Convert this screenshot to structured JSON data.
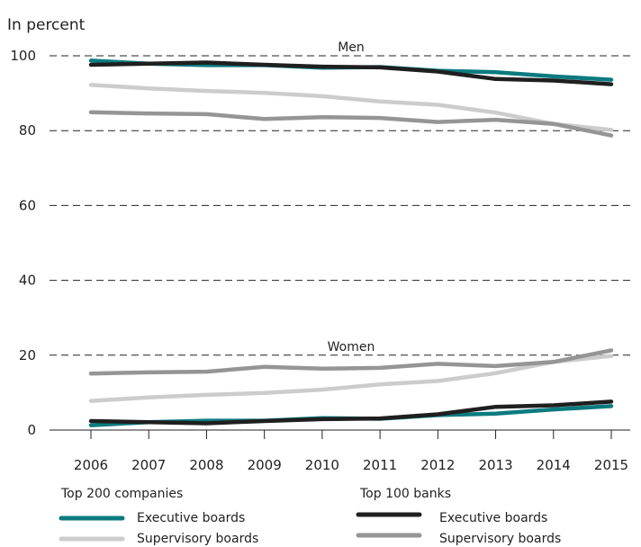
{
  "chart_data": {
    "type": "line",
    "unit_label": "In percent",
    "x": [
      2006,
      2007,
      2008,
      2009,
      2010,
      2011,
      2012,
      2013,
      2014,
      2015
    ],
    "ylim": [
      0,
      100
    ],
    "yticks": [
      0,
      20,
      40,
      60,
      80,
      100
    ],
    "grid": "horizontal dashed",
    "annotations": [
      {
        "text": "Men",
        "x": 2010.5,
        "y": 100
      },
      {
        "text": "Women",
        "x": 2010.5,
        "y": 20
      }
    ],
    "legend": {
      "placement": "bottom",
      "groups": [
        {
          "title": "Top 200 companies",
          "entries": [
            {
              "label": "Executive boards",
              "color": "#0b7b7f"
            },
            {
              "label": "Supervisory boards",
              "color": "#cccccc"
            }
          ]
        },
        {
          "title": "Top 100 banks",
          "entries": [
            {
              "label": "Executive boards",
              "color": "#1f1f1f"
            },
            {
              "label": "Supervisory boards",
              "color": "#959595"
            }
          ]
        }
      ]
    },
    "series": [
      {
        "group": "Top 200 companies",
        "board": "Executive boards",
        "panel": "Men",
        "color": "#0b7b7f",
        "values": [
          98.7,
          97.9,
          97.5,
          97.5,
          96.8,
          97.0,
          96.0,
          95.6,
          94.5,
          93.6
        ]
      },
      {
        "group": "Top 200 companies",
        "board": "Supervisory boards",
        "panel": "Men",
        "color": "#cccccc",
        "values": [
          92.2,
          91.3,
          90.6,
          90.1,
          89.2,
          87.8,
          86.9,
          84.8,
          81.8,
          80.2
        ]
      },
      {
        "group": "Top 100 banks",
        "board": "Executive boards",
        "panel": "Men",
        "color": "#1f1f1f",
        "values": [
          97.6,
          97.9,
          98.2,
          97.6,
          97.1,
          96.9,
          95.8,
          93.8,
          93.4,
          92.4
        ]
      },
      {
        "group": "Top 100 banks",
        "board": "Supervisory boards",
        "panel": "Men",
        "color": "#959595",
        "values": [
          84.9,
          84.6,
          84.4,
          83.1,
          83.6,
          83.4,
          82.3,
          82.9,
          81.8,
          78.7
        ]
      },
      {
        "group": "Top 200 companies",
        "board": "Executive boards",
        "panel": "Women",
        "color": "#0b7b7f",
        "values": [
          1.3,
          2.1,
          2.5,
          2.5,
          3.2,
          3.0,
          4.0,
          4.4,
          5.5,
          6.4
        ]
      },
      {
        "group": "Top 200 companies",
        "board": "Supervisory boards",
        "panel": "Women",
        "color": "#cccccc",
        "values": [
          7.8,
          8.7,
          9.4,
          9.9,
          10.8,
          12.2,
          13.1,
          15.2,
          18.2,
          19.8
        ]
      },
      {
        "group": "Top 100 banks",
        "board": "Executive boards",
        "panel": "Women",
        "color": "#1f1f1f",
        "values": [
          2.4,
          2.1,
          1.8,
          2.4,
          2.9,
          3.1,
          4.2,
          6.2,
          6.6,
          7.6
        ]
      },
      {
        "group": "Top 100 banks",
        "board": "Supervisory boards",
        "panel": "Women",
        "color": "#959595",
        "values": [
          15.1,
          15.4,
          15.6,
          16.9,
          16.4,
          16.6,
          17.7,
          17.1,
          18.2,
          21.3
        ]
      }
    ]
  }
}
